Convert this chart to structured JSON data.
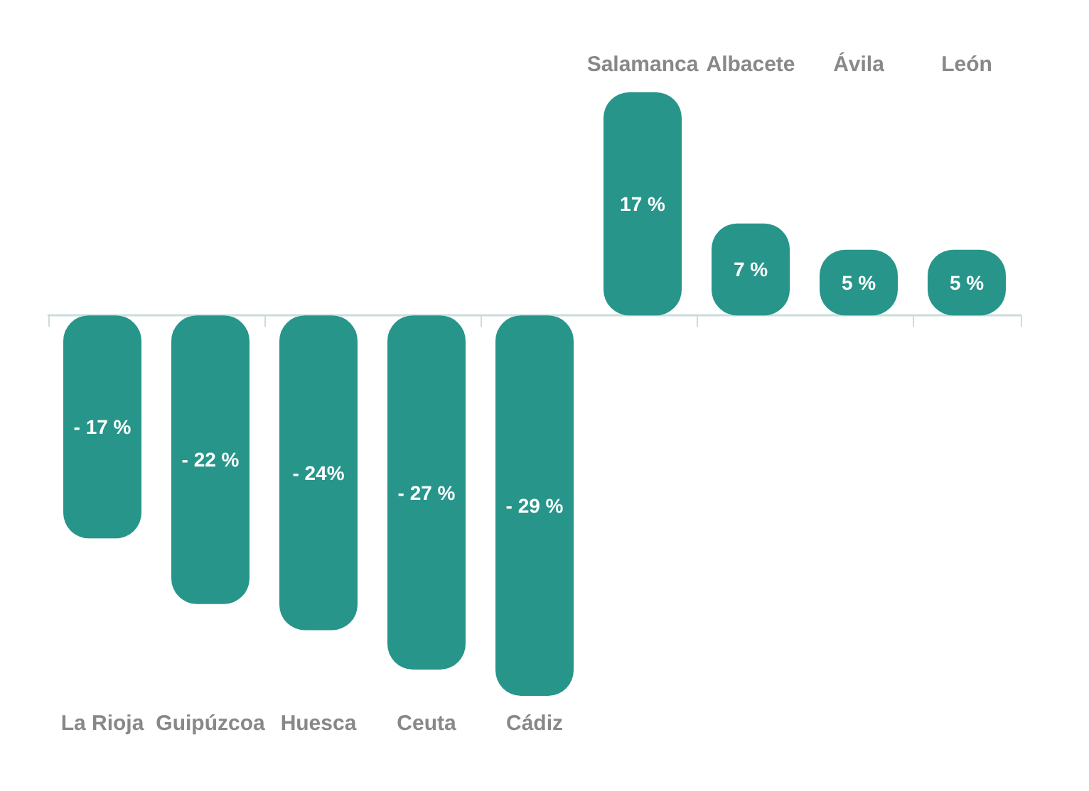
{
  "chart_data": {
    "type": "bar",
    "categories": [
      "La Rioja",
      "Guipúzcoa",
      "Huesca",
      "Ceuta",
      "Cádiz",
      "Salamanca",
      "Albacete",
      "Ávila",
      "León"
    ],
    "values": [
      -17,
      -22,
      -24,
      -27,
      -29,
      17,
      7,
      5,
      5
    ],
    "value_labels": [
      "- 17 %",
      "- 22 %",
      "- 24%",
      "- 27 %",
      "- 29 %",
      "17 %",
      "7 %",
      "5 %",
      "5 %"
    ],
    "color": "#27958a"
  }
}
